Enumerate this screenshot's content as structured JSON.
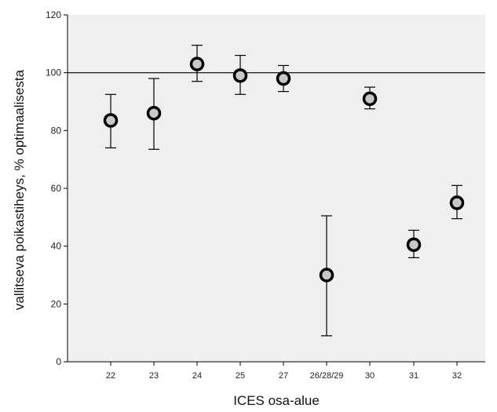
{
  "chart_data": {
    "type": "scatter",
    "subtype": "error-bar",
    "xlabel": "ICES osa-alue",
    "ylabel": "vallitseva poikastiheys, % optimaalisesta",
    "ylim": [
      0,
      120
    ],
    "yticks": [
      0,
      20,
      40,
      60,
      80,
      100,
      120
    ],
    "reference_line": 100,
    "grid": false,
    "colors": {
      "plot_bg": "#efefef",
      "marker_fill": "#c8c8c8",
      "marker_edge": "#000000",
      "line": "#000000"
    },
    "categories": [
      "22",
      "23",
      "24",
      "25",
      "27",
      "26/28/29",
      "30",
      "31",
      "32"
    ],
    "values": [
      83.5,
      86,
      103,
      99,
      98,
      30,
      91,
      40.5,
      55
    ],
    "err_low": [
      74,
      73.5,
      97,
      92.5,
      93.5,
      9,
      87.5,
      36,
      49.5
    ],
    "err_high": [
      92.5,
      98,
      109.5,
      106,
      102.5,
      50.5,
      95,
      45.5,
      61
    ]
  }
}
